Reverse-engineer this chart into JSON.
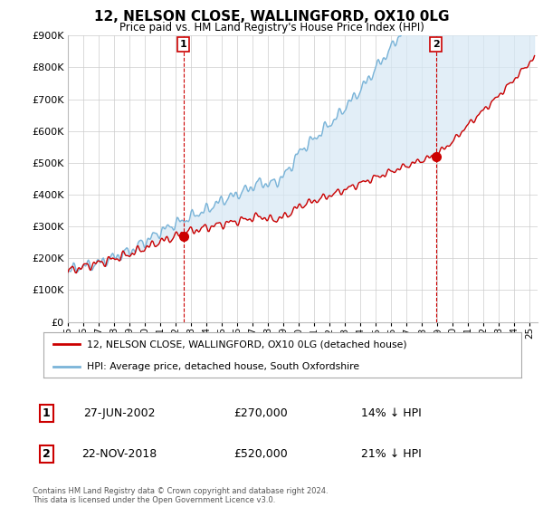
{
  "title": "12, NELSON CLOSE, WALLINGFORD, OX10 0LG",
  "subtitle": "Price paid vs. HM Land Registry's House Price Index (HPI)",
  "ylim": [
    0,
    900000
  ],
  "yticks": [
    0,
    100000,
    200000,
    300000,
    400000,
    500000,
    600000,
    700000,
    800000,
    900000
  ],
  "ytick_labels": [
    "£0",
    "£100K",
    "£200K",
    "£300K",
    "£400K",
    "£500K",
    "£600K",
    "£700K",
    "£800K",
    "£900K"
  ],
  "sale1_date": 2002.5,
  "sale1_price": 270000,
  "sale2_date": 2018.9,
  "sale2_price": 520000,
  "hpi_color": "#7ab4d8",
  "price_color": "#cc0000",
  "fill_color": "#d6e8f5",
  "background_color": "#ffffff",
  "grid_color": "#cccccc",
  "legend1_text": "12, NELSON CLOSE, WALLINGFORD, OX10 0LG (detached house)",
  "legend2_text": "HPI: Average price, detached house, South Oxfordshire",
  "table_row1": [
    "1",
    "27-JUN-2002",
    "£270,000",
    "14% ↓ HPI"
  ],
  "table_row2": [
    "2",
    "22-NOV-2018",
    "£520,000",
    "21% ↓ HPI"
  ],
  "footer": "Contains HM Land Registry data © Crown copyright and database right 2024.\nThis data is licensed under the Open Government Licence v3.0.",
  "xtick_start": 1995,
  "xtick_end": 2025
}
